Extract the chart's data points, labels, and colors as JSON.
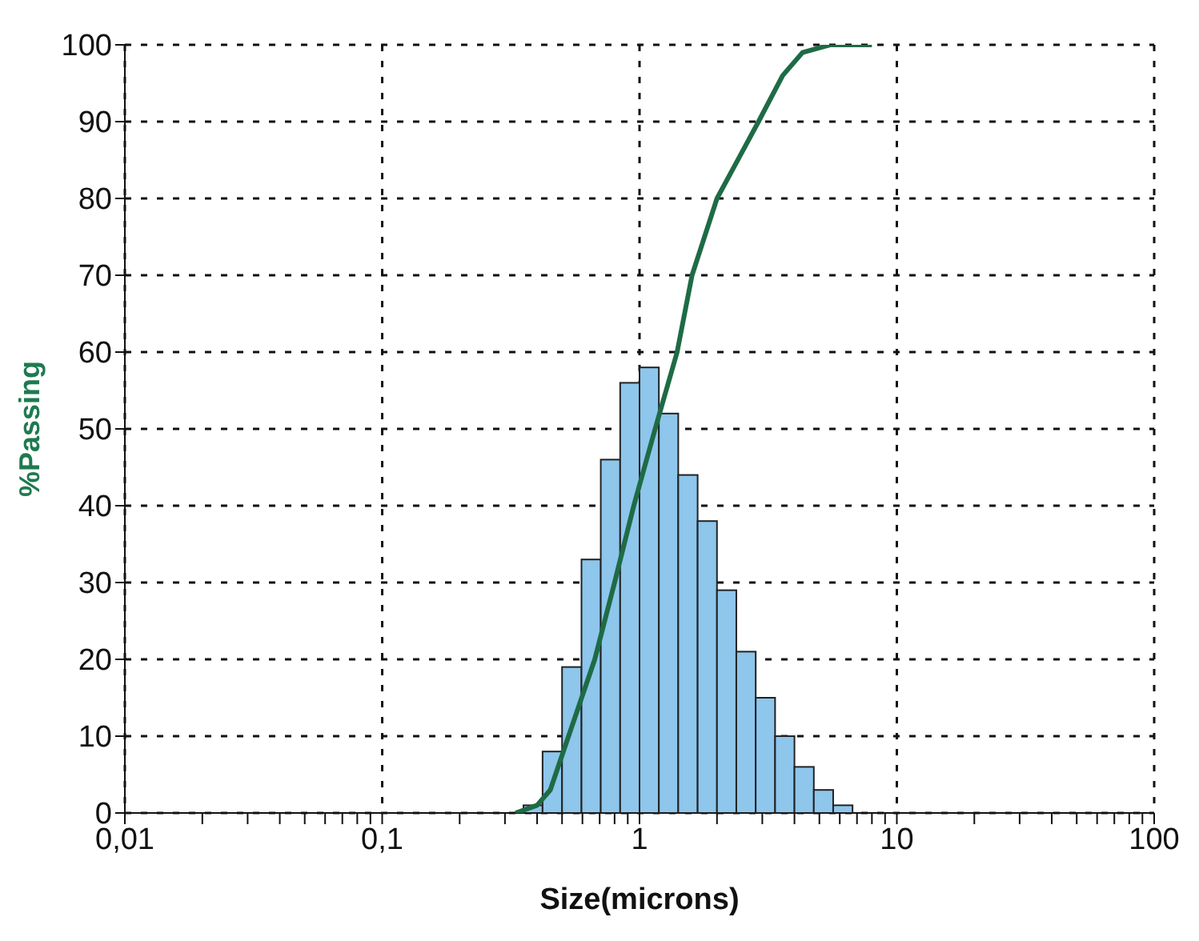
{
  "chart_data": {
    "type": "histogram",
    "xlabel": "Size(microns)",
    "ylabel": "%Passing",
    "log": "x",
    "grid": true,
    "marker": "none",
    "line_style": "solid",
    "xlim": [
      0.01,
      100
    ],
    "ylim": [
      0,
      100
    ],
    "xticks": [
      {
        "value": 0.01,
        "label": "0,01"
      },
      {
        "value": 0.02,
        "label": null
      },
      {
        "value": 0.03,
        "label": null
      },
      {
        "value": 0.04,
        "label": null
      },
      {
        "value": 0.05,
        "label": null
      },
      {
        "value": 0.06,
        "label": null
      },
      {
        "value": 0.07,
        "label": null
      },
      {
        "value": 0.08,
        "label": null
      },
      {
        "value": 0.09,
        "label": null
      },
      {
        "value": 0.1,
        "label": "0,1"
      },
      {
        "value": 0.2,
        "label": null
      },
      {
        "value": 0.3,
        "label": null
      },
      {
        "value": 0.4,
        "label": null
      },
      {
        "value": 0.5,
        "label": null
      },
      {
        "value": 0.6,
        "label": null
      },
      {
        "value": 0.7,
        "label": null
      },
      {
        "value": 0.8,
        "label": null
      },
      {
        "value": 0.9,
        "label": null
      },
      {
        "value": 1,
        "label": "1"
      },
      {
        "value": 2,
        "label": null
      },
      {
        "value": 3,
        "label": null
      },
      {
        "value": 4,
        "label": null
      },
      {
        "value": 5,
        "label": null
      },
      {
        "value": 6,
        "label": null
      },
      {
        "value": 7,
        "label": null
      },
      {
        "value": 8,
        "label": null
      },
      {
        "value": 9,
        "label": null
      },
      {
        "value": 10,
        "label": "10"
      },
      {
        "value": 20,
        "label": null
      },
      {
        "value": 30,
        "label": null
      },
      {
        "value": 40,
        "label": null
      },
      {
        "value": 50,
        "label": null
      },
      {
        "value": 60,
        "label": null
      },
      {
        "value": 70,
        "label": null
      },
      {
        "value": 80,
        "label": null
      },
      {
        "value": 90,
        "label": null
      },
      {
        "value": 100,
        "label": "100"
      }
    ],
    "yticks": [
      0,
      10,
      20,
      30,
      40,
      50,
      60,
      70,
      80,
      90,
      100
    ],
    "series": [
      {
        "color": "#8ec6ec",
        "bins": [
          0.354,
          0.42,
          0.5,
          0.595,
          0.707,
          0.841,
          1,
          1.189,
          1.414,
          1.682,
          2,
          2.378,
          2.828,
          3.364,
          4,
          4.757,
          5.657,
          6.727
        ],
        "values": [
          1,
          8,
          19,
          33,
          46,
          56,
          58,
          52,
          44,
          38,
          29,
          21,
          15,
          10,
          6,
          3,
          1
        ]
      },
      {
        "type": "line",
        "color": "#1e6b45",
        "x": [
          0.33,
          0.4,
          0.45,
          0.53,
          0.67,
          0.8,
          0.95,
          1.15,
          1.4,
          1.6,
          2.0,
          2.5,
          2.9,
          3.6,
          4.3,
          5.5,
          8
        ],
        "values": [
          0,
          1,
          3,
          10,
          20,
          30,
          40,
          50,
          60,
          70,
          80,
          86,
          90,
          96,
          99,
          100,
          100
        ]
      }
    ]
  }
}
